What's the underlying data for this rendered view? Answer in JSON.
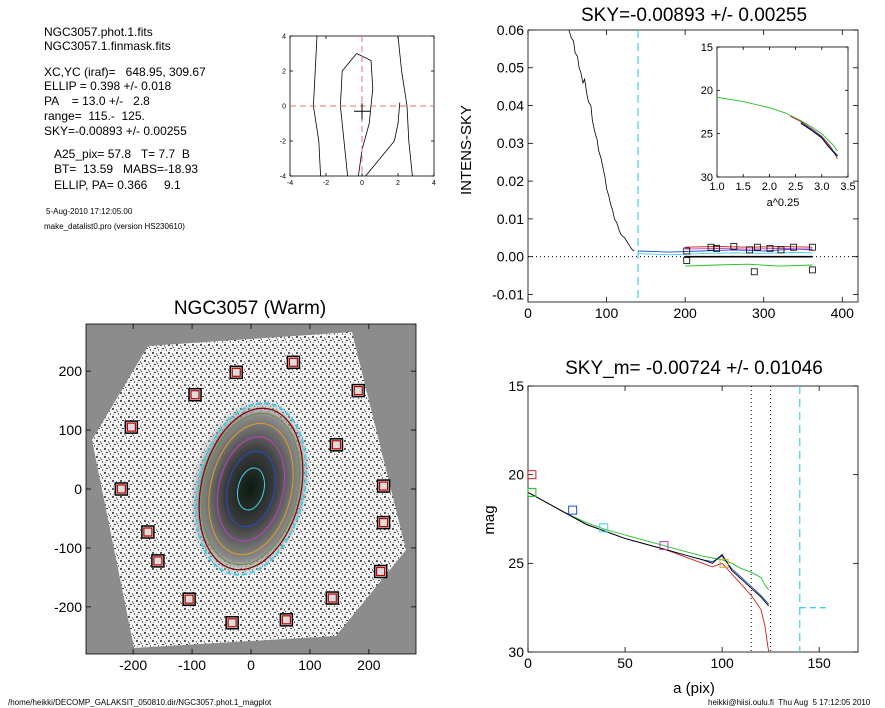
{
  "header": {
    "file1": "NGC3057.phot.1.fits",
    "file2": "NGC3057.1.finmask.fits",
    "center": "XC,YC (iraf)=   648.95, 309.67",
    "ellip": "ELLIP = 0.398 +/- 0.018",
    "pa": "PA    = 13.0 +/-   2.8",
    "range": "range=  115.-  125.",
    "sky": "SKY=-0.00893 +/- 0.00255",
    "a25": "A25_pix= 57.8   T= 7.7  B",
    "bt": "BT=  13.59   MABS=-18.93",
    "ellip_pa": "ELLIP, PA= 0.366     9.1",
    "date": "5-Aug-2010 17:12:05.00",
    "program": "make_datalist0.pro (version HS230610)"
  },
  "footer": {
    "left": "/home/heikki/DECOMP_GALAKSIT_050810.dir/NGC3057.phot.1_magplot",
    "right": "heikki@hiisi.oulu.fi  Thu Aug  5 17:12:05 2010"
  },
  "colors": {
    "black": "#000000",
    "red": "#d02020",
    "green": "#20c020",
    "blue": "#2050d0",
    "cyan": "#40d0e8",
    "magenta": "#c040c0",
    "orange": "#e0a020",
    "darkred": "#800000",
    "dash_pink": "#e87070"
  },
  "chart_data": [
    {
      "id": "center-plot",
      "type": "line",
      "title": "",
      "xlim": [
        -4,
        4
      ],
      "ylim": [
        -4,
        4
      ],
      "xticks": [
        "-4",
        "-2",
        "0",
        "2",
        "4"
      ],
      "yticks": [
        "-4",
        "-2",
        "0",
        "2",
        "4"
      ],
      "contours": [
        [
          [
            -2.5,
            4
          ],
          [
            -2.6,
            2
          ],
          [
            -2.7,
            0
          ],
          [
            -2.4,
            -2
          ],
          [
            -2.3,
            -4
          ]
        ],
        [
          [
            2.0,
            4
          ],
          [
            2.2,
            2
          ],
          [
            2.5,
            0
          ],
          [
            2.6,
            -2
          ],
          [
            2.8,
            -4
          ]
        ],
        [
          [
            -0.8,
            -4
          ],
          [
            -1.0,
            -2
          ],
          [
            -1.2,
            0
          ],
          [
            -1.1,
            2
          ],
          [
            -0.3,
            3.0
          ],
          [
            0.5,
            2.6
          ],
          [
            0.6,
            1.0
          ],
          [
            0.4,
            -1.0
          ],
          [
            0.0,
            -2.5
          ],
          [
            -0.2,
            -4
          ]
        ],
        [
          [
            0.2,
            -4
          ],
          [
            1.0,
            -3.0
          ],
          [
            1.8,
            -2
          ],
          [
            2.0,
            -1.0
          ],
          [
            2.1,
            0.2
          ]
        ]
      ],
      "crosshair": [
        0,
        0
      ],
      "star_mark": [
        0,
        -0.3
      ]
    },
    {
      "id": "sky-plot",
      "type": "line",
      "title": "SKY=-0.00893 +/- 0.00255",
      "xlabel": "",
      "ylabel": "INTENS-SKY",
      "xlim": [
        0,
        420
      ],
      "ylim": [
        -0.012,
        0.06
      ],
      "xticks": [
        "0",
        "100",
        "200",
        "300",
        "400"
      ],
      "yticks": [
        "-0.01",
        "0.00",
        "0.01",
        "0.02",
        "0.03",
        "0.04",
        "0.05",
        "0.06"
      ],
      "profile": {
        "x": [
          52,
          55,
          58,
          60,
          63,
          65,
          67,
          70,
          72,
          75,
          77,
          80,
          82,
          85,
          88,
          90,
          93,
          95,
          98,
          100,
          103,
          105,
          108,
          110,
          113,
          116,
          118,
          120,
          123,
          126,
          129,
          132,
          135
        ],
        "y": [
          0.06,
          0.058,
          0.057,
          0.054,
          0.053,
          0.05,
          0.049,
          0.046,
          0.047,
          0.043,
          0.041,
          0.04,
          0.036,
          0.033,
          0.031,
          0.028,
          0.026,
          0.024,
          0.021,
          0.018,
          0.016,
          0.014,
          0.012,
          0.01,
          0.009,
          0.007,
          0.006,
          0.0055,
          0.005,
          0.004,
          0.003,
          0.002,
          0.0015
        ]
      },
      "sky_lines": [
        {
          "color": "blue",
          "x": [
            140,
            180,
            220,
            260,
            300,
            340,
            362
          ],
          "y": [
            0.0015,
            0.0012,
            0.0015,
            0.0018,
            0.0015,
            0.002,
            0.0018
          ]
        },
        {
          "color": "cyan",
          "x": [
            140,
            180,
            220,
            260,
            300,
            340,
            362
          ],
          "y": [
            0.0008,
            0.0005,
            0.0008,
            0.001,
            0.0009,
            0.0011,
            0.001
          ]
        },
        {
          "color": "magenta",
          "x": [
            200,
            240,
            280,
            320,
            362
          ],
          "y": [
            0.002,
            0.0022,
            0.002,
            0.0022,
            0.002
          ]
        },
        {
          "color": "red",
          "x": [
            200,
            240,
            280,
            320,
            362
          ],
          "y": [
            0.0025,
            0.0027,
            0.0025,
            0.0027,
            0.0025
          ]
        },
        {
          "color": "green",
          "x": [
            200,
            240,
            280,
            320,
            362
          ],
          "y": [
            -0.0025,
            -0.0022,
            -0.002,
            -0.0025,
            -0.0022
          ]
        },
        {
          "color": "black",
          "x": [
            200,
            362
          ],
          "y": [
            0.0,
            0.0
          ]
        }
      ],
      "squares": {
        "x": [
          202,
          233,
          240,
          262,
          282,
          292,
          308,
          322,
          338,
          362,
          202,
          288,
          362
        ],
        "y": [
          0.0015,
          0.0025,
          0.0022,
          0.0027,
          0.0018,
          0.0025,
          0.0022,
          0.0018,
          0.0025,
          0.0025,
          -0.001,
          -0.004,
          -0.0035
        ]
      },
      "dashed_x": 140,
      "zero_line": 0.0,
      "inset": {
        "xlabel": "a^0.25",
        "xlim": [
          1.0,
          3.5
        ],
        "ylim_inverted": [
          30,
          15
        ],
        "xticks": [
          "1.0",
          "1.5",
          "2.0",
          "2.5",
          "3.0",
          "3.5"
        ],
        "yticks": [
          "15",
          "20",
          "25",
          "30"
        ],
        "series": [
          {
            "color": "green",
            "x": [
              1.0,
              1.5,
              2.0,
              2.3,
              2.6,
              2.8,
              3.0,
              3.1,
              3.2,
              3.3
            ],
            "y": [
              20.8,
              21.3,
              22.0,
              22.6,
              23.5,
              24.2,
              25.0,
              25.6,
              26.2,
              27.0
            ]
          },
          {
            "color": "red",
            "x": [
              2.4,
              2.6,
              2.8,
              3.0,
              3.1,
              3.2,
              3.3
            ],
            "y": [
              23.0,
              23.6,
              24.4,
              25.3,
              26.0,
              26.8,
              27.9
            ]
          },
          {
            "color": "blue",
            "x": [
              2.6,
              2.8,
              3.0,
              3.1,
              3.2,
              3.3
            ],
            "y": [
              23.7,
              24.5,
              25.4,
              26.2,
              26.9,
              27.5
            ]
          },
          {
            "color": "black",
            "x": [
              2.6,
              2.8,
              3.0,
              3.1,
              3.2,
              3.3
            ],
            "y": [
              23.8,
              24.6,
              25.5,
              26.3,
              27.0,
              27.6
            ]
          }
        ]
      }
    },
    {
      "id": "image-panel",
      "type": "scatter",
      "title": "NGC3057 (Warm)",
      "xlim": [
        -280,
        280
      ],
      "ylim": [
        -280,
        280
      ],
      "xticks": [
        "-200",
        "-100",
        "0",
        "100",
        "200"
      ],
      "yticks": [
        "-200",
        "-100",
        "0",
        "100",
        "200"
      ],
      "sky_boxes": {
        "x": [
          72,
          -25,
          -95,
          -203,
          182,
          145,
          -220,
          225,
          -175,
          -158,
          -105,
          -32,
          60,
          138,
          220
        ],
        "y": [
          215,
          198,
          160,
          105,
          167,
          75,
          0,
          5,
          -73,
          -122,
          -187,
          -227,
          -222,
          -185,
          -140
        ]
      },
      "extra_boxes": {
        "x": [
          225
        ],
        "y": [
          -57
        ]
      },
      "ellipse_center": [
        0,
        0
      ],
      "ellipse_a": 145,
      "ellipse_b": 88,
      "ellipse_pa_deg": 13.0
    },
    {
      "id": "mag-plot",
      "type": "line",
      "title": "SKY_m= -0.00724 +/- 0.01046",
      "xlabel": "a (pix)",
      "ylabel": "mag",
      "xlim": [
        0,
        170
      ],
      "ylim_inverted": [
        30,
        15
      ],
      "xticks": [
        "0",
        "50",
        "100",
        "150"
      ],
      "yticks": [
        "15",
        "20",
        "25",
        "30"
      ],
      "series": [
        {
          "color": "green",
          "x": [
            0,
            10,
            20,
            30,
            40,
            50,
            60,
            70,
            80,
            90,
            95,
            100,
            105,
            110,
            115,
            120,
            122,
            124
          ],
          "y": [
            21.0,
            21.6,
            22.2,
            22.7,
            23.1,
            23.4,
            23.7,
            24.0,
            24.3,
            24.6,
            24.7,
            24.8,
            25.0,
            25.3,
            25.5,
            25.8,
            26.2,
            26.5
          ]
        },
        {
          "color": "red",
          "x": [
            0,
            10,
            20,
            30,
            40,
            50,
            60,
            70,
            80,
            90,
            95,
            100,
            105,
            110,
            115,
            120,
            122,
            124
          ],
          "y": [
            21.0,
            21.6,
            22.2,
            22.8,
            23.2,
            23.6,
            23.9,
            24.2,
            24.6,
            25.0,
            25.2,
            25.0,
            25.6,
            26.2,
            26.8,
            27.6,
            28.5,
            30.0
          ]
        },
        {
          "color": "blue",
          "x": [
            0,
            10,
            20,
            30,
            40,
            50,
            60,
            70,
            80,
            90,
            95,
            100,
            105,
            110,
            115,
            120,
            124
          ],
          "y": [
            21.0,
            21.6,
            22.2,
            22.8,
            23.2,
            23.6,
            23.9,
            24.2,
            24.5,
            24.8,
            24.9,
            24.6,
            25.3,
            25.8,
            26.3,
            26.8,
            27.3
          ]
        },
        {
          "color": "black",
          "x": [
            0,
            10,
            20,
            30,
            40,
            50,
            60,
            70,
            80,
            90,
            95,
            100,
            105,
            110,
            115,
            120,
            124
          ],
          "y": [
            21.0,
            21.6,
            22.2,
            22.8,
            23.2,
            23.6,
            23.9,
            24.2,
            24.5,
            24.8,
            25.0,
            24.5,
            25.4,
            25.9,
            26.4,
            26.9,
            27.4
          ]
        }
      ],
      "markers": [
        {
          "color": "red",
          "x": 2,
          "y": 20.0
        },
        {
          "color": "green",
          "x": 2,
          "y": 21.0
        },
        {
          "color": "blue",
          "x": 23,
          "y": 22.0
        },
        {
          "color": "cyan",
          "x": 39,
          "y": 23.0
        },
        {
          "color": "magenta",
          "x": 70,
          "y": 24.0
        },
        {
          "color": "orange",
          "x": 101,
          "y": 25.0
        }
      ],
      "vlines_dotted": [
        115,
        125
      ],
      "vline_cyan": 140,
      "cyan_segment": {
        "x": [
          140,
          155
        ],
        "y": 27.5
      }
    }
  ]
}
